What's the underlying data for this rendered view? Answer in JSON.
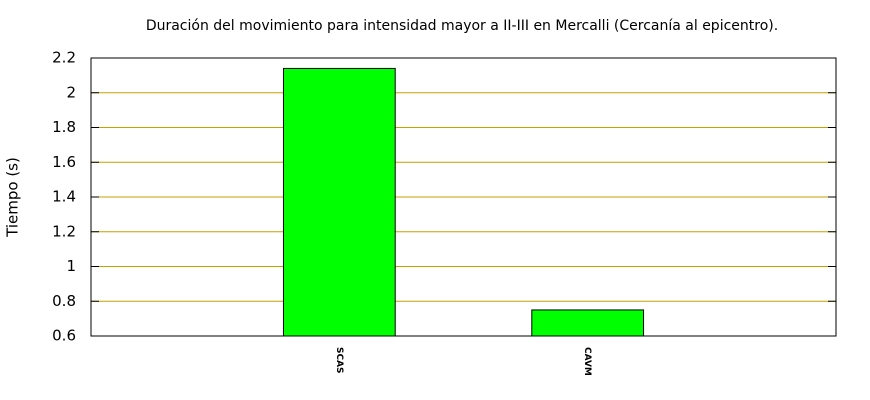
{
  "chart_data": {
    "type": "bar",
    "title": "Duración del movimiento para intensidad mayor a II-III en Mercalli (Cercanía al epicentro).",
    "ylabel": "Tiempo (s)",
    "categories": [
      "SCAS",
      "CAVM"
    ],
    "values": [
      2.14,
      0.75
    ],
    "color": "#00ff00",
    "ylim": [
      0.6,
      2.2
    ],
    "yticks": [
      0.6,
      0.8,
      1,
      1.2,
      1.4,
      1.6,
      1.8,
      2,
      2.2
    ],
    "grid": true
  }
}
